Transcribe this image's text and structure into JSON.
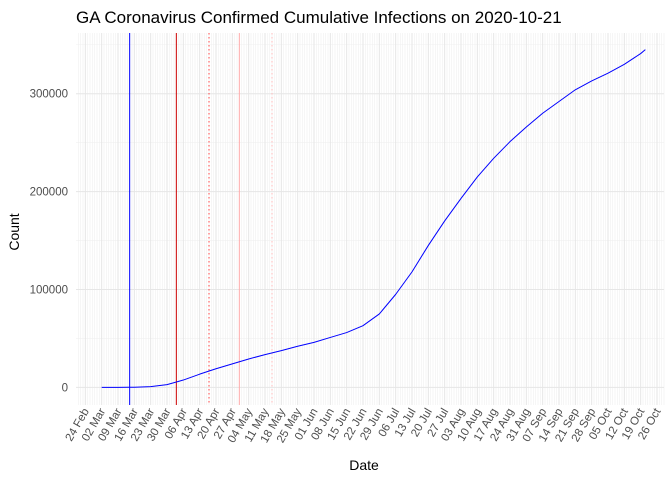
{
  "chart_data": {
    "type": "line",
    "title": "GA Coronavirus Confirmed Cumulative Infections on 2020-10-21",
    "xlabel": "Date",
    "ylabel": "Count",
    "x_type": "date",
    "xlim": [
      "2020-02-20",
      "2020-10-29"
    ],
    "ylim": [
      -18000,
      362000
    ],
    "grid": true,
    "y_ticks": [
      0,
      100000,
      200000,
      300000
    ],
    "y_tick_labels": [
      "0",
      "100000",
      "200000",
      "300000"
    ],
    "x_ticks": [
      "2020-02-24",
      "2020-03-02",
      "2020-03-09",
      "2020-03-16",
      "2020-03-23",
      "2020-03-30",
      "2020-04-06",
      "2020-04-13",
      "2020-04-20",
      "2020-04-27",
      "2020-05-04",
      "2020-05-11",
      "2020-05-18",
      "2020-05-25",
      "2020-06-01",
      "2020-06-08",
      "2020-06-15",
      "2020-06-22",
      "2020-06-29",
      "2020-07-06",
      "2020-07-13",
      "2020-07-20",
      "2020-07-27",
      "2020-08-03",
      "2020-08-10",
      "2020-08-17",
      "2020-08-24",
      "2020-08-31",
      "2020-09-07",
      "2020-09-14",
      "2020-09-21",
      "2020-09-28",
      "2020-10-05",
      "2020-10-12",
      "2020-10-19",
      "2020-10-26"
    ],
    "x_tick_labels": [
      "24 Feb",
      "02 Mar",
      "09 Mar",
      "16 Mar",
      "23 Mar",
      "30 Mar",
      "06 Apr",
      "13 Apr",
      "20 Apr",
      "27 Apr",
      "04 May",
      "11 May",
      "18 May",
      "25 May",
      "01 Jun",
      "08 Jun",
      "15 Jun",
      "22 Jun",
      "29 Jun",
      "06 Jul",
      "13 Jul",
      "20 Jul",
      "27 Jul",
      "03 Aug",
      "10 Aug",
      "17 Aug",
      "24 Aug",
      "31 Aug",
      "07 Sep",
      "14 Sep",
      "21 Sep",
      "28 Sep",
      "05 Oct",
      "12 Oct",
      "19 Oct",
      "26 Oct"
    ],
    "vlines": [
      {
        "x": "2020-03-14",
        "color": "#0000ff",
        "style": "solid"
      },
      {
        "x": "2020-04-03",
        "color": "#cc0000",
        "style": "solid"
      },
      {
        "x": "2020-04-17",
        "color": "#ff4444",
        "style": "dotted"
      },
      {
        "x": "2020-04-30",
        "color": "#ffaaaa",
        "style": "solid"
      },
      {
        "x": "2020-05-14",
        "color": "#ffbbbb",
        "style": "dotted"
      }
    ],
    "series": [
      {
        "color": "#0000ff",
        "points": [
          [
            "2020-03-02",
            0
          ],
          [
            "2020-03-09",
            50
          ],
          [
            "2020-03-16",
            150
          ],
          [
            "2020-03-23",
            800
          ],
          [
            "2020-03-30",
            2800
          ],
          [
            "2020-04-06",
            7500
          ],
          [
            "2020-04-13",
            13500
          ],
          [
            "2020-04-20",
            19000
          ],
          [
            "2020-04-27",
            24000
          ],
          [
            "2020-05-04",
            29000
          ],
          [
            "2020-05-11",
            33500
          ],
          [
            "2020-05-18",
            37500
          ],
          [
            "2020-05-25",
            42000
          ],
          [
            "2020-06-01",
            46000
          ],
          [
            "2020-06-08",
            51000
          ],
          [
            "2020-06-15",
            56000
          ],
          [
            "2020-06-22",
            63000
          ],
          [
            "2020-06-29",
            75000
          ],
          [
            "2020-07-06",
            95000
          ],
          [
            "2020-07-13",
            118000
          ],
          [
            "2020-07-20",
            145000
          ],
          [
            "2020-07-27",
            170000
          ],
          [
            "2020-08-03",
            193000
          ],
          [
            "2020-08-10",
            215000
          ],
          [
            "2020-08-17",
            234000
          ],
          [
            "2020-08-24",
            251000
          ],
          [
            "2020-08-31",
            266000
          ],
          [
            "2020-09-07",
            280000
          ],
          [
            "2020-09-14",
            292000
          ],
          [
            "2020-09-21",
            304000
          ],
          [
            "2020-09-28",
            313000
          ],
          [
            "2020-10-05",
            321000
          ],
          [
            "2020-10-12",
            330000
          ],
          [
            "2020-10-19",
            341000
          ],
          [
            "2020-10-21",
            345000
          ]
        ]
      }
    ]
  }
}
